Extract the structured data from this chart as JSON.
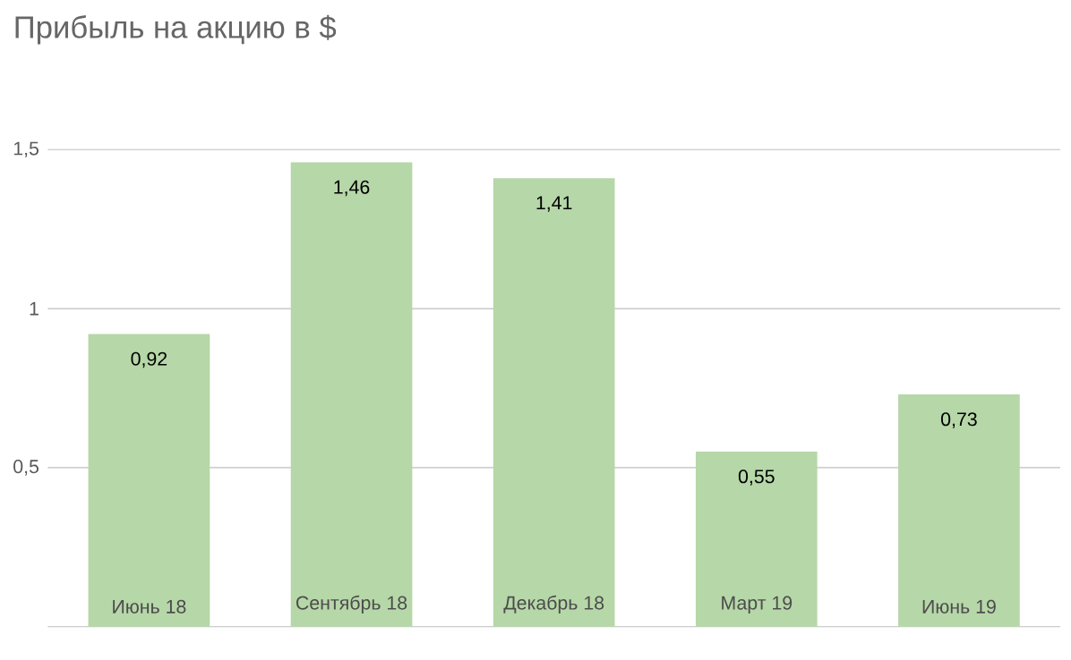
{
  "chart_data": {
    "type": "bar",
    "title": "Прибыль на акцию в $",
    "categories": [
      "Июнь 18",
      "Сентябрь 18",
      "Декабрь 18",
      "Март 19",
      "Июнь 19"
    ],
    "values": [
      0.92,
      1.46,
      1.41,
      0.55,
      0.73
    ],
    "value_labels": [
      "0,92",
      "1,46",
      "1,41",
      "0,55",
      "0,73"
    ],
    "color": "#b6d7a8",
    "ylim": [
      0,
      1.5
    ],
    "yticks": [
      {
        "value": 0.5,
        "label": "0,5"
      },
      {
        "value": 1,
        "label": "1"
      },
      {
        "value": 1.5,
        "label": "1,5"
      }
    ],
    "grid": "y"
  }
}
